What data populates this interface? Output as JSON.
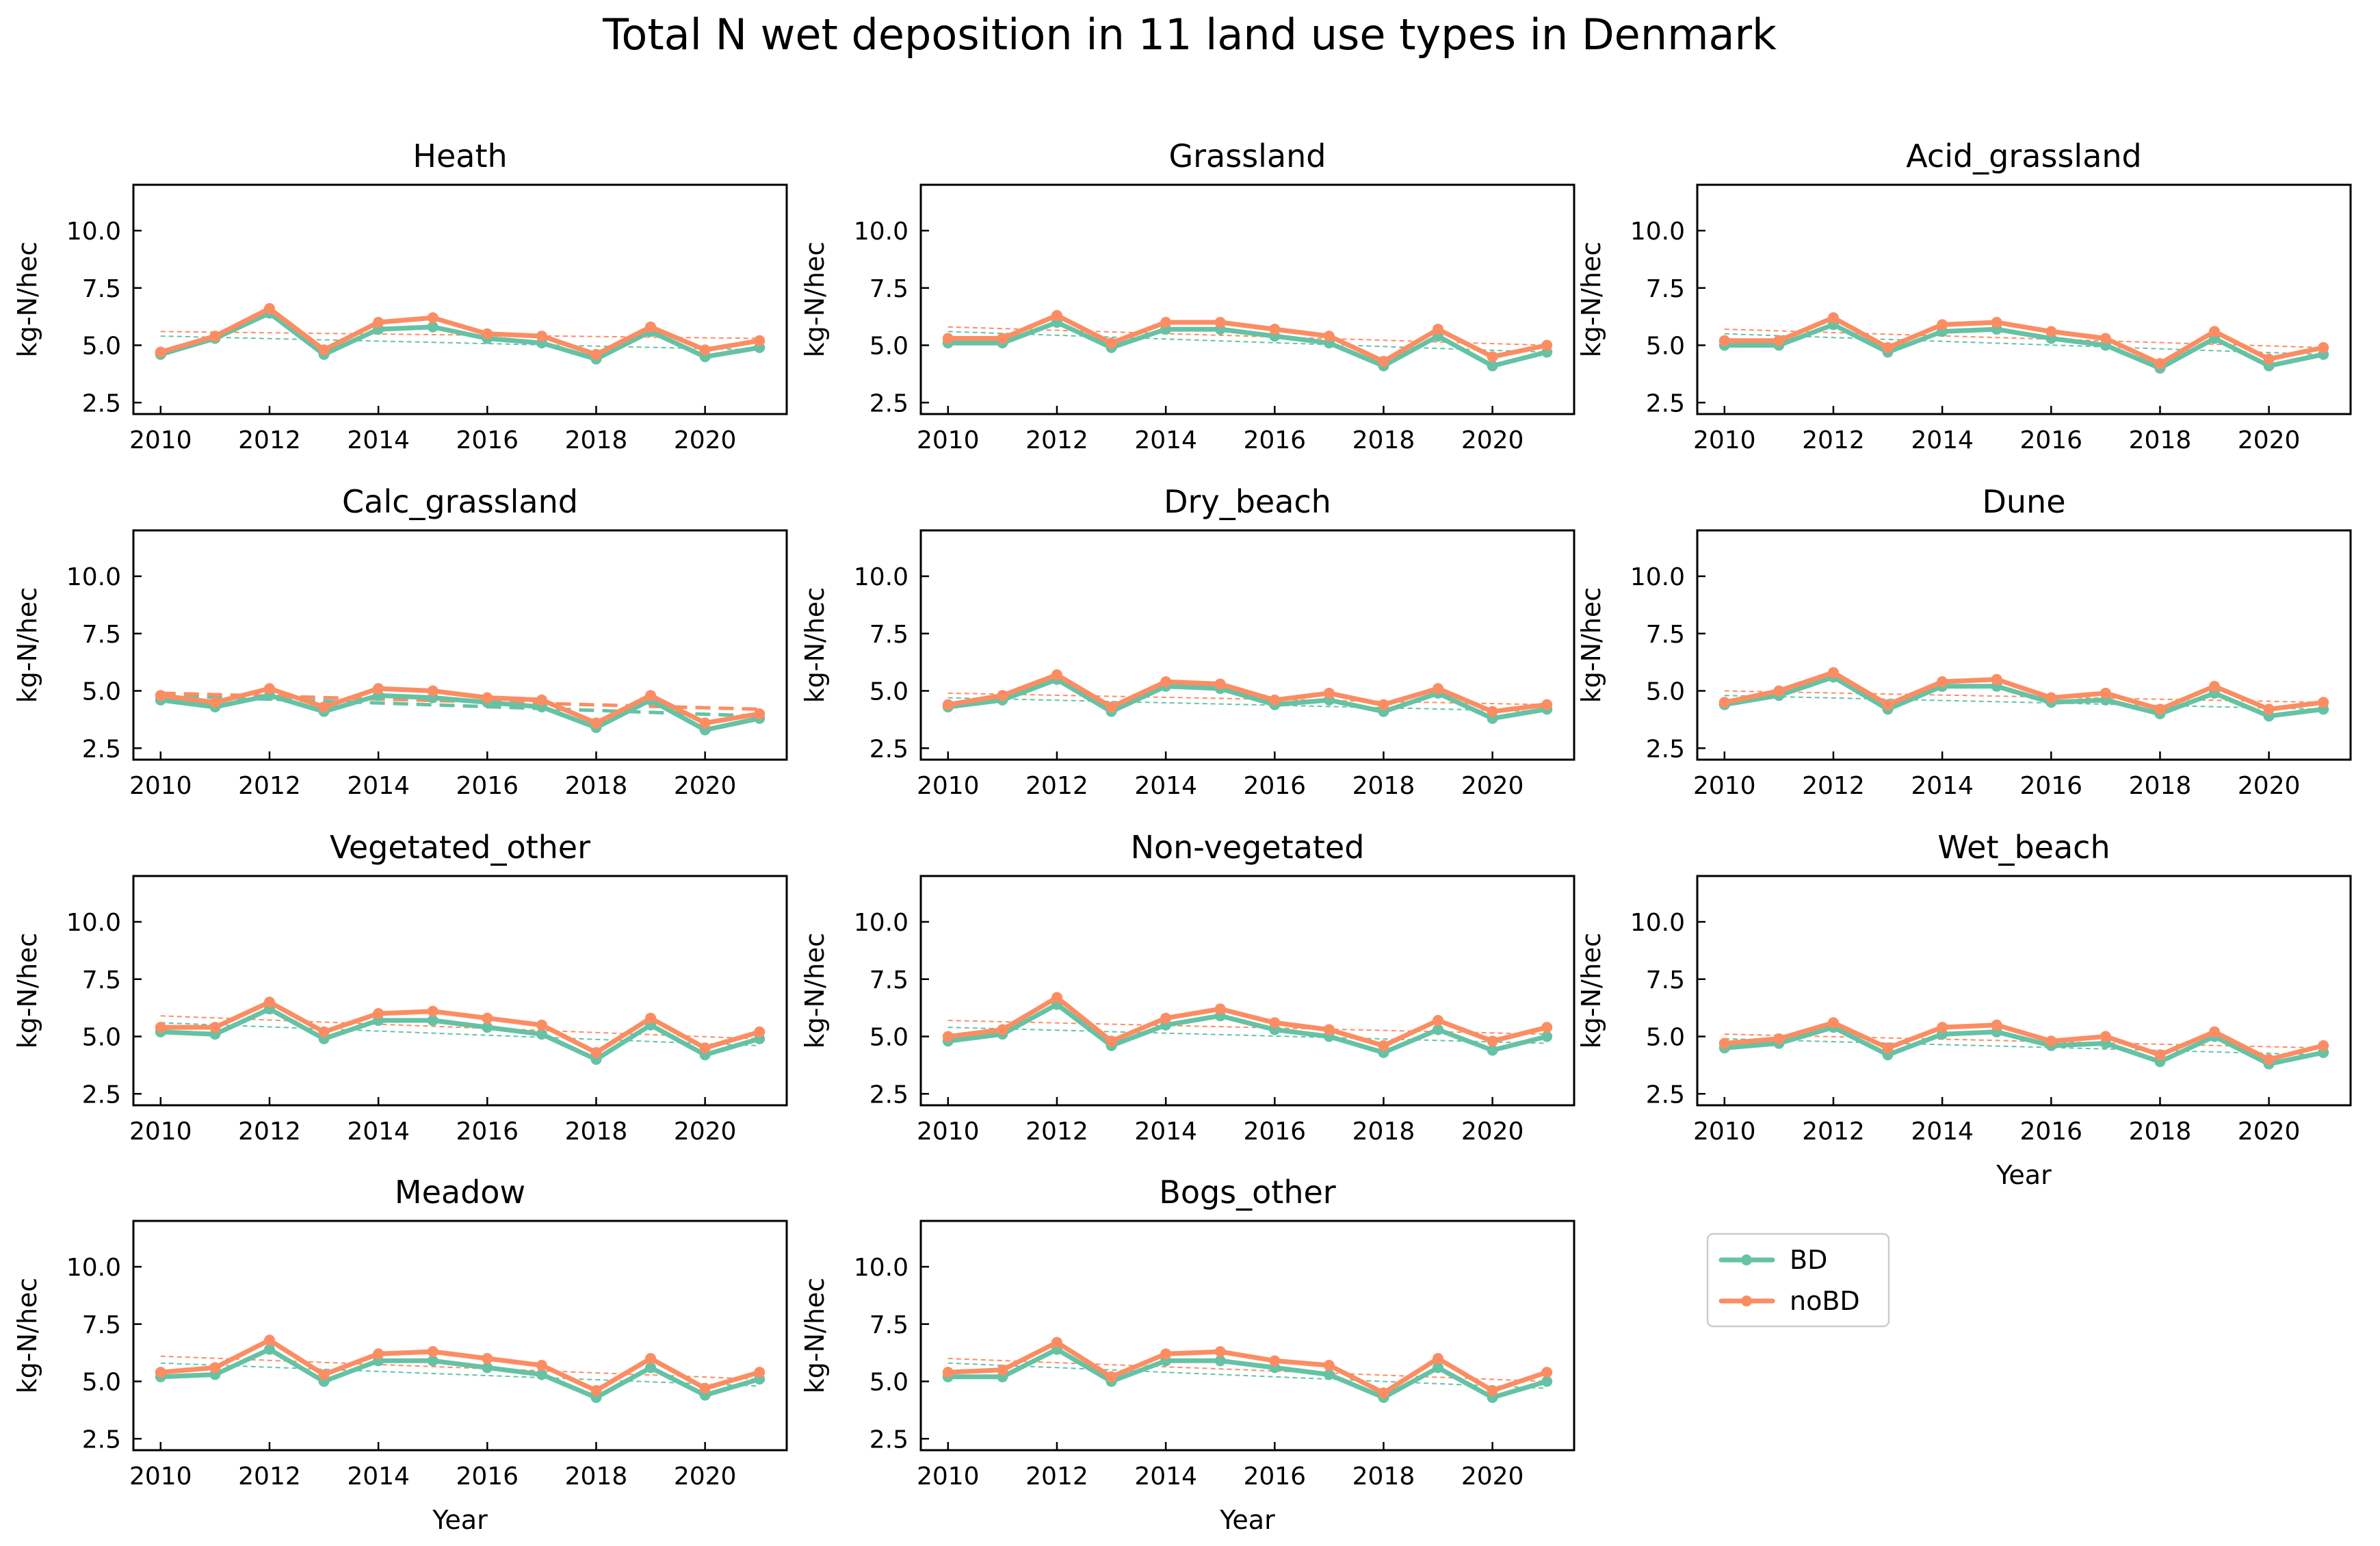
{
  "figure": {
    "title": "Total N wet deposition in 11 land use types in Denmark"
  },
  "legend": {
    "placement": "lower-right empty panel",
    "entries": [
      "BD",
      "noBD"
    ]
  },
  "colors": {
    "BD": "#66c2a5",
    "noBD": "#fc8d62"
  },
  "chart_data": [
    {
      "type": "line",
      "title": "Heath",
      "xlabel": "",
      "ylabel": "kg-N/hec",
      "xlim": [
        2009.5,
        2021.5
      ],
      "ylim": [
        2.0,
        12.0
      ],
      "xticks": [
        2010,
        2012,
        2014,
        2016,
        2018,
        2020
      ],
      "yticks": [
        2.5,
        5.0,
        7.5,
        10.0
      ],
      "grid": false,
      "x": [
        2010,
        2011,
        2012,
        2013,
        2014,
        2015,
        2016,
        2017,
        2018,
        2019,
        2020,
        2021
      ],
      "series": [
        {
          "name": "BD",
          "values": [
            4.6,
            5.3,
            6.4,
            4.6,
            5.7,
            5.8,
            5.3,
            5.1,
            4.4,
            5.6,
            4.5,
            4.9
          ],
          "trend": [
            5.4,
            4.8
          ]
        },
        {
          "name": "noBD",
          "values": [
            4.7,
            5.4,
            6.6,
            4.8,
            6.0,
            6.2,
            5.5,
            5.4,
            4.6,
            5.8,
            4.8,
            5.2
          ],
          "trend": [
            5.6,
            5.3
          ]
        }
      ]
    },
    {
      "type": "line",
      "title": "Grassland",
      "xlabel": "",
      "ylabel": "kg-N/hec",
      "xlim": [
        2009.5,
        2021.5
      ],
      "ylim": [
        2.0,
        12.0
      ],
      "xticks": [
        2010,
        2012,
        2014,
        2016,
        2018,
        2020
      ],
      "yticks": [
        2.5,
        5.0,
        7.5,
        10.0
      ],
      "grid": false,
      "x": [
        2010,
        2011,
        2012,
        2013,
        2014,
        2015,
        2016,
        2017,
        2018,
        2019,
        2020,
        2021
      ],
      "series": [
        {
          "name": "BD",
          "values": [
            5.1,
            5.1,
            6.0,
            4.9,
            5.7,
            5.7,
            5.4,
            5.1,
            4.1,
            5.4,
            4.1,
            4.7
          ],
          "trend": [
            5.6,
            4.7
          ]
        },
        {
          "name": "noBD",
          "values": [
            5.3,
            5.3,
            6.3,
            5.1,
            6.0,
            6.0,
            5.7,
            5.4,
            4.3,
            5.7,
            4.5,
            5.0
          ],
          "trend": [
            5.8,
            5.0
          ]
        }
      ]
    },
    {
      "type": "line",
      "title": "Acid_grassland",
      "xlabel": "",
      "ylabel": "kg-N/hec",
      "xlim": [
        2009.5,
        2021.5
      ],
      "ylim": [
        2.0,
        12.0
      ],
      "xticks": [
        2010,
        2012,
        2014,
        2016,
        2018,
        2020
      ],
      "yticks": [
        2.5,
        5.0,
        7.5,
        10.0
      ],
      "grid": false,
      "x": [
        2010,
        2011,
        2012,
        2013,
        2014,
        2015,
        2016,
        2017,
        2018,
        2019,
        2020,
        2021
      ],
      "series": [
        {
          "name": "BD",
          "values": [
            5.0,
            5.0,
            5.9,
            4.7,
            5.6,
            5.7,
            5.3,
            5.0,
            4.0,
            5.3,
            4.1,
            4.6
          ],
          "trend": [
            5.5,
            4.6
          ]
        },
        {
          "name": "noBD",
          "values": [
            5.2,
            5.2,
            6.2,
            4.9,
            5.9,
            6.0,
            5.6,
            5.3,
            4.2,
            5.6,
            4.4,
            4.9
          ],
          "trend": [
            5.7,
            4.9
          ]
        }
      ]
    },
    {
      "type": "line",
      "title": "Calc_grassland",
      "xlabel": "",
      "ylabel": "kg-N/hec",
      "xlim": [
        2009.5,
        2021.5
      ],
      "ylim": [
        2.0,
        12.0
      ],
      "xticks": [
        2010,
        2012,
        2014,
        2016,
        2018,
        2020
      ],
      "yticks": [
        2.5,
        5.0,
        7.5,
        10.0
      ],
      "grid": false,
      "x": [
        2010,
        2011,
        2012,
        2013,
        2014,
        2015,
        2016,
        2017,
        2018,
        2019,
        2020,
        2021
      ],
      "series": [
        {
          "name": "BD",
          "values": [
            4.6,
            4.3,
            4.8,
            4.1,
            4.8,
            4.7,
            4.5,
            4.3,
            3.4,
            4.6,
            3.3,
            3.8
          ],
          "trend": [
            4.8,
            3.9
          ],
          "trend_style": "bold-dashed"
        },
        {
          "name": "noBD",
          "values": [
            4.8,
            4.5,
            5.1,
            4.3,
            5.1,
            5.0,
            4.7,
            4.6,
            3.6,
            4.8,
            3.6,
            4.0
          ],
          "trend": [
            4.9,
            4.2
          ],
          "trend_style": "bold-dashed"
        }
      ]
    },
    {
      "type": "line",
      "title": "Dry_beach",
      "xlabel": "",
      "ylabel": "kg-N/hec",
      "xlim": [
        2009.5,
        2021.5
      ],
      "ylim": [
        2.0,
        12.0
      ],
      "xticks": [
        2010,
        2012,
        2014,
        2016,
        2018,
        2020
      ],
      "yticks": [
        2.5,
        5.0,
        7.5,
        10.0
      ],
      "grid": false,
      "x": [
        2010,
        2011,
        2012,
        2013,
        2014,
        2015,
        2016,
        2017,
        2018,
        2019,
        2020,
        2021
      ],
      "series": [
        {
          "name": "BD",
          "values": [
            4.3,
            4.6,
            5.5,
            4.1,
            5.2,
            5.1,
            4.4,
            4.6,
            4.1,
            4.9,
            3.8,
            4.2
          ],
          "trend": [
            4.7,
            4.1
          ]
        },
        {
          "name": "noBD",
          "values": [
            4.4,
            4.8,
            5.7,
            4.3,
            5.4,
            5.3,
            4.6,
            4.9,
            4.4,
            5.1,
            4.1,
            4.4
          ],
          "trend": [
            4.9,
            4.4
          ]
        }
      ]
    },
    {
      "type": "line",
      "title": "Dune",
      "xlabel": "",
      "ylabel": "kg-N/hec",
      "xlim": [
        2009.5,
        2021.5
      ],
      "ylim": [
        2.0,
        12.0
      ],
      "xticks": [
        2010,
        2012,
        2014,
        2016,
        2018,
        2020
      ],
      "yticks": [
        2.5,
        5.0,
        7.5,
        10.0
      ],
      "grid": false,
      "x": [
        2010,
        2011,
        2012,
        2013,
        2014,
        2015,
        2016,
        2017,
        2018,
        2019,
        2020,
        2021
      ],
      "series": [
        {
          "name": "BD",
          "values": [
            4.4,
            4.8,
            5.6,
            4.2,
            5.2,
            5.2,
            4.5,
            4.6,
            4.0,
            4.9,
            3.9,
            4.2
          ],
          "trend": [
            4.8,
            4.2
          ]
        },
        {
          "name": "noBD",
          "values": [
            4.5,
            5.0,
            5.8,
            4.4,
            5.4,
            5.5,
            4.7,
            4.9,
            4.2,
            5.2,
            4.2,
            4.5
          ],
          "trend": [
            5.0,
            4.5
          ]
        }
      ]
    },
    {
      "type": "line",
      "title": "Vegetated_other",
      "xlabel": "",
      "ylabel": "kg-N/hec",
      "xlim": [
        2009.5,
        2021.5
      ],
      "ylim": [
        2.0,
        12.0
      ],
      "xticks": [
        2010,
        2012,
        2014,
        2016,
        2018,
        2020
      ],
      "yticks": [
        2.5,
        5.0,
        7.5,
        10.0
      ],
      "grid": false,
      "x": [
        2010,
        2011,
        2012,
        2013,
        2014,
        2015,
        2016,
        2017,
        2018,
        2019,
        2020,
        2021
      ],
      "series": [
        {
          "name": "BD",
          "values": [
            5.2,
            5.1,
            6.2,
            4.9,
            5.7,
            5.7,
            5.4,
            5.1,
            4.0,
            5.5,
            4.2,
            4.9
          ],
          "trend": [
            5.6,
            4.6
          ]
        },
        {
          "name": "noBD",
          "values": [
            5.4,
            5.4,
            6.5,
            5.2,
            6.0,
            6.1,
            5.8,
            5.5,
            4.3,
            5.8,
            4.5,
            5.2
          ],
          "trend": [
            5.9,
            4.9
          ]
        }
      ]
    },
    {
      "type": "line",
      "title": "Non-vegetated",
      "xlabel": "",
      "ylabel": "kg-N/hec",
      "xlim": [
        2009.5,
        2021.5
      ],
      "ylim": [
        2.0,
        12.0
      ],
      "xticks": [
        2010,
        2012,
        2014,
        2016,
        2018,
        2020
      ],
      "yticks": [
        2.5,
        5.0,
        7.5,
        10.0
      ],
      "grid": false,
      "x": [
        2010,
        2011,
        2012,
        2013,
        2014,
        2015,
        2016,
        2017,
        2018,
        2019,
        2020,
        2021
      ],
      "series": [
        {
          "name": "BD",
          "values": [
            4.8,
            5.1,
            6.4,
            4.6,
            5.5,
            5.9,
            5.3,
            5.0,
            4.3,
            5.3,
            4.4,
            5.0
          ],
          "trend": [
            5.4,
            4.7
          ]
        },
        {
          "name": "noBD",
          "values": [
            5.0,
            5.3,
            6.7,
            4.8,
            5.8,
            6.2,
            5.6,
            5.3,
            4.6,
            5.7,
            4.8,
            5.4
          ],
          "trend": [
            5.7,
            5.1
          ]
        }
      ]
    },
    {
      "type": "line",
      "title": "Wet_beach",
      "xlabel": "Year",
      "ylabel": "kg-N/hec",
      "xlim": [
        2009.5,
        2021.5
      ],
      "ylim": [
        2.0,
        12.0
      ],
      "xticks": [
        2010,
        2012,
        2014,
        2016,
        2018,
        2020
      ],
      "yticks": [
        2.5,
        5.0,
        7.5,
        10.0
      ],
      "grid": false,
      "x": [
        2010,
        2011,
        2012,
        2013,
        2014,
        2015,
        2016,
        2017,
        2018,
        2019,
        2020,
        2021
      ],
      "series": [
        {
          "name": "BD",
          "values": [
            4.5,
            4.7,
            5.4,
            4.2,
            5.1,
            5.2,
            4.6,
            4.7,
            3.9,
            5.0,
            3.8,
            4.3
          ],
          "trend": [
            4.9,
            4.2
          ]
        },
        {
          "name": "noBD",
          "values": [
            4.7,
            4.9,
            5.6,
            4.5,
            5.4,
            5.5,
            4.8,
            5.0,
            4.2,
            5.2,
            4.0,
            4.6
          ],
          "trend": [
            5.1,
            4.5
          ]
        }
      ]
    },
    {
      "type": "line",
      "title": "Meadow",
      "xlabel": "Year",
      "ylabel": "kg-N/hec",
      "xlim": [
        2009.5,
        2021.5
      ],
      "ylim": [
        2.0,
        12.0
      ],
      "xticks": [
        2010,
        2012,
        2014,
        2016,
        2018,
        2020
      ],
      "yticks": [
        2.5,
        5.0,
        7.5,
        10.0
      ],
      "grid": false,
      "x": [
        2010,
        2011,
        2012,
        2013,
        2014,
        2015,
        2016,
        2017,
        2018,
        2019,
        2020,
        2021
      ],
      "series": [
        {
          "name": "BD",
          "values": [
            5.2,
            5.3,
            6.4,
            5.0,
            5.9,
            5.9,
            5.6,
            5.3,
            4.3,
            5.6,
            4.4,
            5.1
          ],
          "trend": [
            5.8,
            4.8
          ]
        },
        {
          "name": "noBD",
          "values": [
            5.4,
            5.6,
            6.8,
            5.3,
            6.2,
            6.3,
            6.0,
            5.7,
            4.6,
            6.0,
            4.7,
            5.4
          ],
          "trend": [
            6.1,
            5.1
          ]
        }
      ]
    },
    {
      "type": "line",
      "title": "Bogs_other",
      "xlabel": "Year",
      "ylabel": "kg-N/hec",
      "xlim": [
        2009.5,
        2021.5
      ],
      "ylim": [
        2.0,
        12.0
      ],
      "xticks": [
        2010,
        2012,
        2014,
        2016,
        2018,
        2020
      ],
      "yticks": [
        2.5,
        5.0,
        7.5,
        10.0
      ],
      "grid": false,
      "x": [
        2010,
        2011,
        2012,
        2013,
        2014,
        2015,
        2016,
        2017,
        2018,
        2019,
        2020,
        2021
      ],
      "series": [
        {
          "name": "BD",
          "values": [
            5.2,
            5.2,
            6.4,
            5.0,
            5.9,
            5.9,
            5.6,
            5.3,
            4.3,
            5.6,
            4.3,
            5.0
          ],
          "trend": [
            5.8,
            4.7
          ]
        },
        {
          "name": "noBD",
          "values": [
            5.4,
            5.5,
            6.7,
            5.2,
            6.2,
            6.3,
            5.9,
            5.7,
            4.5,
            6.0,
            4.6,
            5.4
          ],
          "trend": [
            6.0,
            5.0
          ]
        }
      ]
    }
  ]
}
